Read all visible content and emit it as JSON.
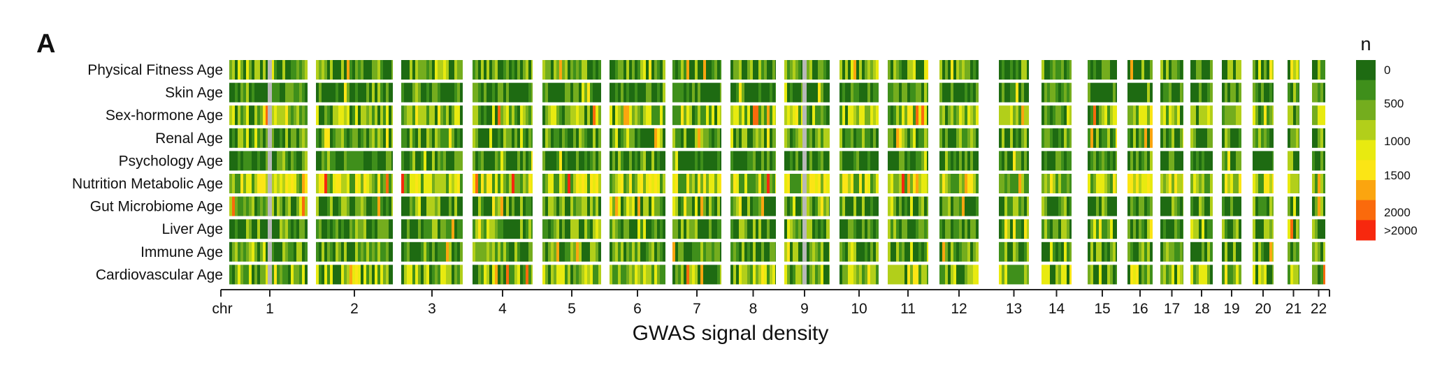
{
  "panel_label": "A",
  "chart_data": {
    "type": "heatmap",
    "title": "",
    "xlabel": "GWAS signal density",
    "x_axis_prefix": "chr",
    "chromosomes": [
      "1",
      "2",
      "3",
      "4",
      "5",
      "6",
      "7",
      "8",
      "9",
      "10",
      "11",
      "12",
      "13",
      "14",
      "15",
      "16",
      "17",
      "18",
      "19",
      "20",
      "21",
      "22"
    ],
    "rows": [
      "Physical Fitness Age",
      "Skin Age",
      "Sex-hormone Age",
      "Renal Age",
      "Psychology Age",
      "Nutrition Metabolic Age",
      "Gut Microbiome Age",
      "Liver Age",
      "Immune Age",
      "Cardiovascular Age"
    ],
    "row_mean_level": [
      1,
      0,
      2,
      1,
      0,
      3,
      1,
      1,
      1,
      2
    ],
    "color_scale": {
      "title": "n",
      "tick_labels": [
        "0",
        "500",
        "1000",
        "1500",
        "2000",
        ">2000"
      ],
      "colors": [
        "#1e6b12",
        "#3f8f1b",
        "#74ad1e",
        "#b2cf1a",
        "#e8ea10",
        "#fbe515",
        "#fba50f",
        "#fa6a0c",
        "#f7280e"
      ]
    },
    "centromere_color": "#b8b8b8",
    "legend_position": "right"
  }
}
